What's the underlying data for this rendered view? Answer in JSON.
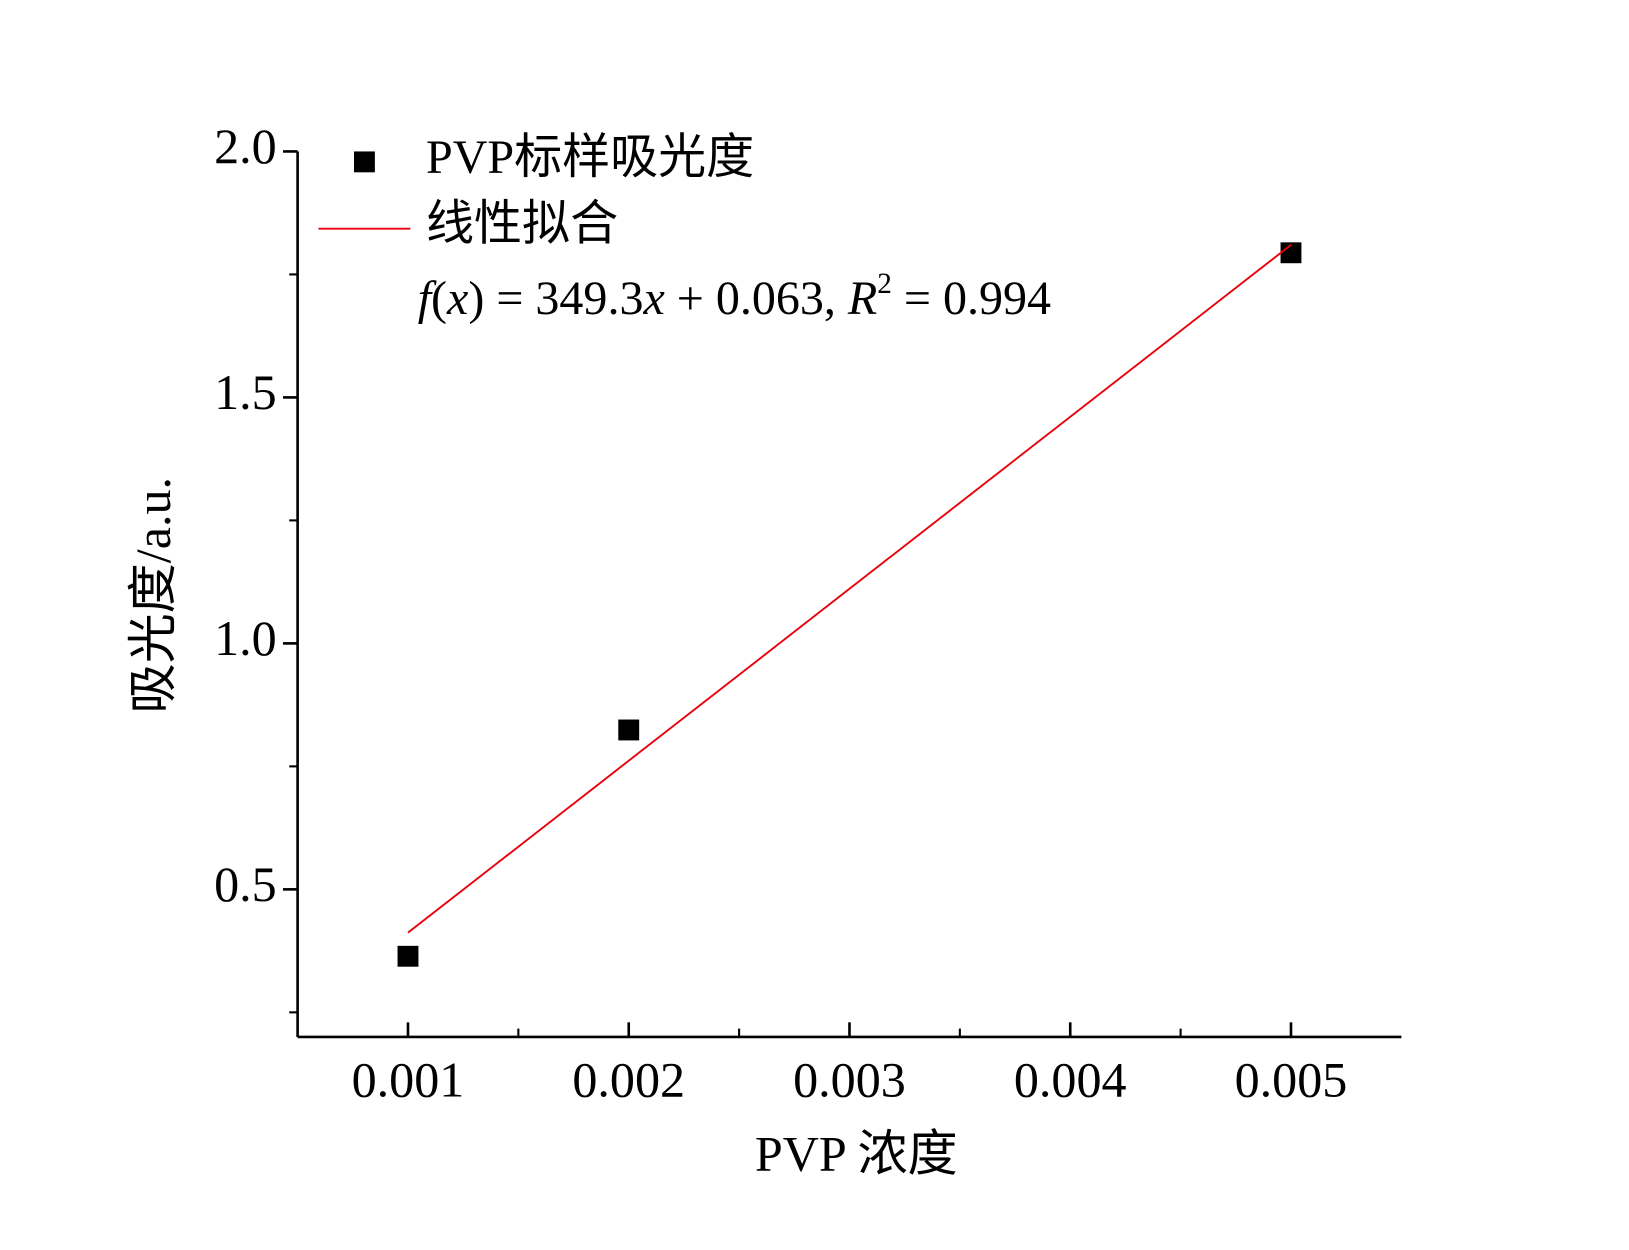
{
  "chart_data": {
    "type": "scatter",
    "xlabel": "PVP 浓度",
    "ylabel": "吸光度/a.u.",
    "xlim": [
      0.0005,
      0.0055
    ],
    "ylim": [
      0.2,
      2.0
    ],
    "xticks": [
      0.001,
      0.002,
      0.003,
      0.004,
      0.005
    ],
    "yticks": [
      0.5,
      {
        "value": 1,
        "label": "1.0"
      },
      1.5,
      {
        "value": 2,
        "label": "2.0"
      }
    ],
    "xminor": [
      0.0015,
      0.0025,
      0.0035,
      0.0045
    ],
    "yminor": [
      0.25,
      0.75,
      1.25,
      1.75
    ],
    "series": [
      {
        "name": "PVP标样吸光度",
        "type": "scatter",
        "color": "#000000",
        "x": [
          0.001,
          0.002,
          0.005
        ],
        "values": [
          0.364,
          0.824,
          1.794
        ]
      },
      {
        "name": "线性拟合",
        "type": "line",
        "color": "#e8000b",
        "x": [
          0.001,
          0.005
        ],
        "values": [
          0.412,
          1.81
        ]
      }
    ],
    "annotation": [
      {
        "text": "f",
        "style": "italic"
      },
      {
        "text": "(",
        "style": "normal"
      },
      {
        "text": "x",
        "style": "italic"
      },
      {
        "text": ") = 349.3",
        "style": "normal"
      },
      {
        "text": "x",
        "style": "italic"
      },
      {
        "text": " + 0.063, ",
        "style": "normal"
      },
      {
        "text": "R",
        "style": "italic"
      },
      {
        "text": "2",
        "style": "sup"
      },
      {
        "text": " = 0.994",
        "style": "normal"
      }
    ]
  }
}
